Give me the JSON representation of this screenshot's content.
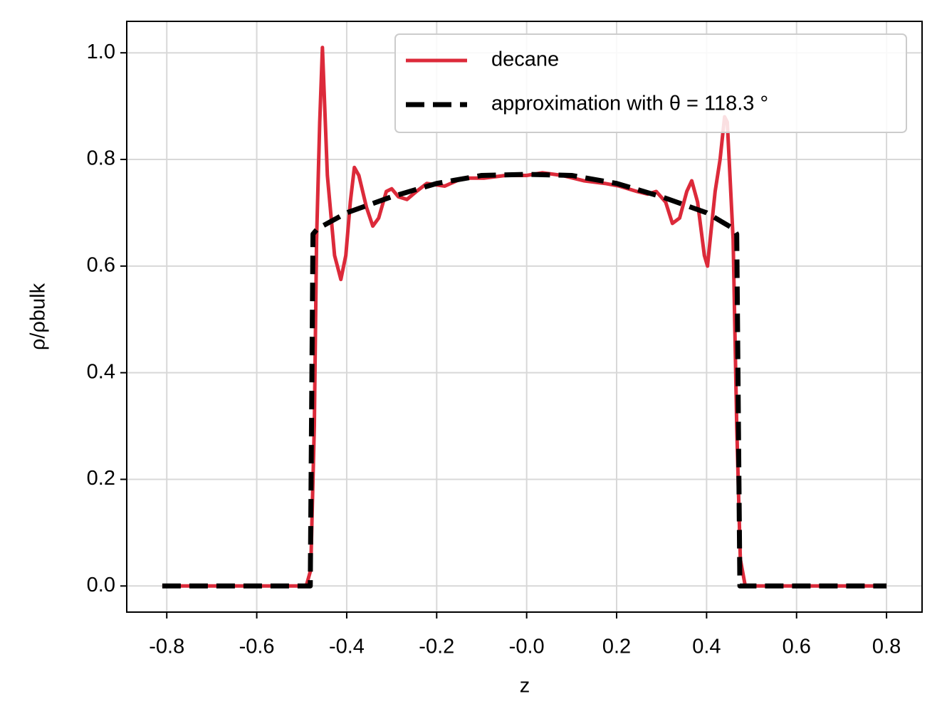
{
  "chart_data": {
    "type": "line",
    "xlabel": "z",
    "ylabel": "ρ/ρbulk",
    "xlim": [
      -0.889,
      0.879
    ],
    "ylim": [
      -0.049,
      1.059
    ],
    "xticks": [
      -0.8,
      -0.6,
      -0.4,
      -0.2,
      {
        "value": 0,
        "label": "-0.0"
      },
      0.2,
      0.4,
      0.6,
      0.8
    ],
    "yticks": [
      {
        "value": 0,
        "label": "0.0"
      },
      0.2,
      0.4,
      0.6,
      0.8,
      {
        "value": 1,
        "label": "1.0"
      }
    ],
    "grid": true,
    "legend": "upper right",
    "series": [
      {
        "name": "decane",
        "color": "#dc2a3a",
        "style": "solid",
        "x": [
          -0.81,
          -0.49,
          -0.48,
          -0.472,
          -0.467,
          -0.46,
          -0.454,
          -0.443,
          -0.427,
          -0.413,
          -0.402,
          -0.392,
          -0.383,
          -0.373,
          -0.356,
          -0.342,
          -0.329,
          -0.312,
          -0.3,
          -0.285,
          -0.266,
          -0.245,
          -0.222,
          -0.182,
          -0.142,
          -0.095,
          -0.047,
          0,
          0.035,
          0.079,
          0.127,
          0.174,
          0.206,
          0.245,
          0.269,
          0.288,
          0.309,
          0.324,
          0.34,
          0.356,
          0.367,
          0.38,
          0.395,
          0.402,
          0.408,
          0.419,
          0.43,
          0.44,
          0.446,
          0.459,
          0.467,
          0.475,
          0.486,
          0.8
        ],
        "values": [
          0,
          0,
          0.03,
          0.3,
          0.65,
          0.87,
          1.01,
          0.77,
          0.62,
          0.575,
          0.62,
          0.72,
          0.785,
          0.77,
          0.71,
          0.675,
          0.69,
          0.74,
          0.745,
          0.73,
          0.725,
          0.74,
          0.755,
          0.75,
          0.765,
          0.765,
          0.77,
          0.77,
          0.775,
          0.77,
          0.76,
          0.755,
          0.75,
          0.74,
          0.735,
          0.74,
          0.72,
          0.68,
          0.69,
          0.74,
          0.76,
          0.72,
          0.62,
          0.6,
          0.65,
          0.74,
          0.8,
          0.88,
          0.87,
          0.65,
          0.3,
          0.05,
          0,
          0
        ]
      },
      {
        "name": "approximation with θ = 118.3 °",
        "color": "#000000",
        "style": "dashed",
        "x": [
          -0.81,
          -0.481,
          -0.475,
          -0.465,
          -0.4,
          -0.3,
          -0.2,
          -0.1,
          0,
          0.1,
          0.2,
          0.3,
          0.4,
          0.46,
          0.467,
          0.474,
          0.8
        ],
        "values": [
          0,
          0,
          0.66,
          0.67,
          0.7,
          0.73,
          0.755,
          0.77,
          0.772,
          0.77,
          0.755,
          0.73,
          0.7,
          0.67,
          0.66,
          0,
          0
        ]
      }
    ]
  }
}
